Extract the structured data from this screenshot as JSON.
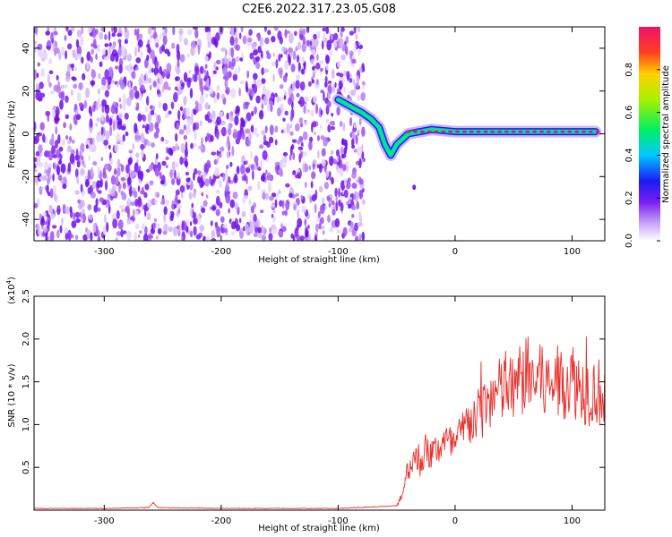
{
  "title": "C2E6.2022.317.23.05.G08",
  "chart_data": [
    {
      "type": "heatmap",
      "xlabel": "Height of straight line (km)",
      "ylabel": "Frequency (Hz)",
      "xlim": [
        -360,
        128
      ],
      "ylim": [
        -50,
        50
      ],
      "x_ticks": [
        "-300",
        "-200",
        "-100",
        "0",
        "100"
      ],
      "y_ticks": [
        "-40",
        "-20",
        "0",
        "20",
        "40"
      ],
      "colorbar": {
        "label": "Normalized spectral amplitude",
        "ticks": [
          "0.0",
          "0.2",
          "0.4",
          "0.6",
          "0.8"
        ],
        "range": [
          0,
          1
        ]
      },
      "signal_track": {
        "x": [
          -100,
          -90,
          -80,
          -72,
          -65,
          -60,
          -55,
          -50,
          -40,
          -30,
          -20,
          0,
          20,
          40,
          60,
          80,
          100,
          120
        ],
        "y": [
          16,
          13,
          10,
          7,
          3,
          -5,
          -10,
          -5,
          0,
          1,
          2,
          1,
          1,
          1,
          1,
          1,
          1,
          1
        ]
      }
    },
    {
      "type": "line",
      "xlabel": "Height of straight line (km)",
      "ylabel": "SNR (10 * v/v)",
      "ylabel_scale": "(x10",
      "ylabel_scale_exp": "4",
      "y_scale": 10000,
      "xlim": [
        -360,
        128
      ],
      "ylim": [
        0,
        25000
      ],
      "x_ticks": [
        "-300",
        "-200",
        "-100",
        "0",
        "100"
      ],
      "y_ticks": [
        "0.5",
        "1.0",
        "1.5",
        "2.0",
        "2.5"
      ],
      "line_color": "#e8302c",
      "series": [
        {
          "x": [
            -360,
            -300,
            -262,
            -258,
            -254,
            -200,
            -100,
            -50,
            -45,
            -40,
            -35,
            -30,
            -25,
            -20,
            -10,
            0,
            10,
            20,
            30,
            40,
            50,
            60,
            70,
            80,
            90,
            100,
            110,
            120,
            128
          ],
          "values": [
            200,
            200,
            300,
            900,
            300,
            200,
            200,
            500,
            2000,
            5000,
            6000,
            5500,
            7000,
            6500,
            8000,
            7500,
            10000,
            11000,
            13000,
            14000,
            14000,
            16000,
            15000,
            14500,
            15000,
            15500,
            14000,
            14000,
            13500
          ]
        }
      ]
    }
  ]
}
